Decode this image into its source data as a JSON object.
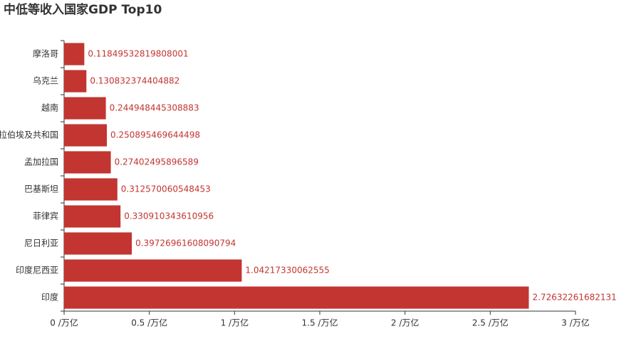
{
  "chart_data": {
    "type": "hbar",
    "title": "中低等收入国家GDP Top10",
    "categories": [
      "摩洛哥",
      "乌克兰",
      "越南",
      "阿拉伯埃及共和国",
      "孟加拉国",
      "巴基斯坦",
      "菲律宾",
      "尼日利亚",
      "印度尼西亚",
      "印度"
    ],
    "values": [
      0.11849532819808001,
      0.130832374404882,
      0.244948445308883,
      0.250895469644498,
      0.27402495896589,
      0.312570060548453,
      0.330910343610956,
      0.39726961608090794,
      1.04217330062555,
      2.72632261682131
    ],
    "color": "#c23531",
    "xlim": [
      0,
      3
    ],
    "xticks": [
      {
        "value": 0,
        "label": "0 /万亿"
      },
      {
        "value": 0.5,
        "label": "0.5 /万亿"
      },
      {
        "value": 1,
        "label": "1 /万亿"
      },
      {
        "value": 1.5,
        "label": "1.5 /万亿"
      },
      {
        "value": 2,
        "label": "2 /万亿"
      },
      {
        "value": 2.5,
        "label": "2.5 /万亿"
      },
      {
        "value": 3,
        "label": "3 /万亿"
      }
    ]
  }
}
